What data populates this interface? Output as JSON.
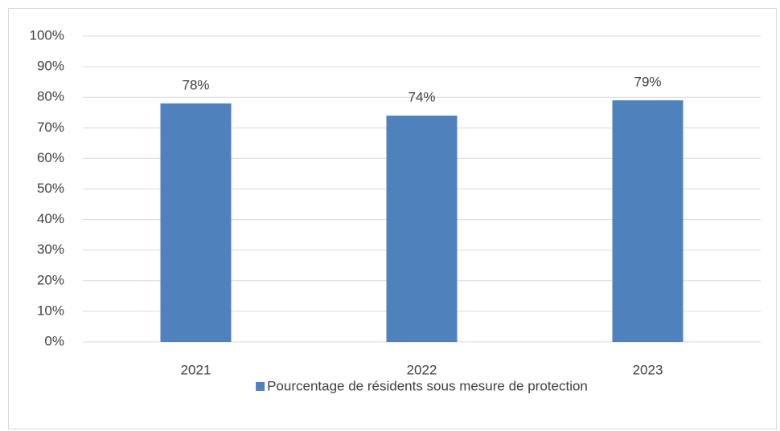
{
  "chart_data": {
    "type": "bar",
    "categories": [
      "2021",
      "2022",
      "2023"
    ],
    "series": [
      {
        "name": "Pourcentage de résidents sous mesure de protection",
        "color": "#4f81bd",
        "values": [
          78,
          74,
          79
        ],
        "value_labels": [
          "78%",
          "74%",
          "79%"
        ]
      }
    ],
    "ylim": [
      0,
      100
    ],
    "yticks": [
      {
        "value": 0,
        "label": "0%"
      },
      {
        "value": 10,
        "label": "10%"
      },
      {
        "value": 20,
        "label": "20%"
      },
      {
        "value": 30,
        "label": "30%"
      },
      {
        "value": 40,
        "label": "40%"
      },
      {
        "value": 50,
        "label": "50%"
      },
      {
        "value": 60,
        "label": "60%"
      },
      {
        "value": 70,
        "label": "70%"
      },
      {
        "value": 80,
        "label": "80%"
      },
      {
        "value": 90,
        "label": "90%"
      },
      {
        "value": 100,
        "label": "100%"
      }
    ],
    "grid": true,
    "legend": "bottom"
  }
}
